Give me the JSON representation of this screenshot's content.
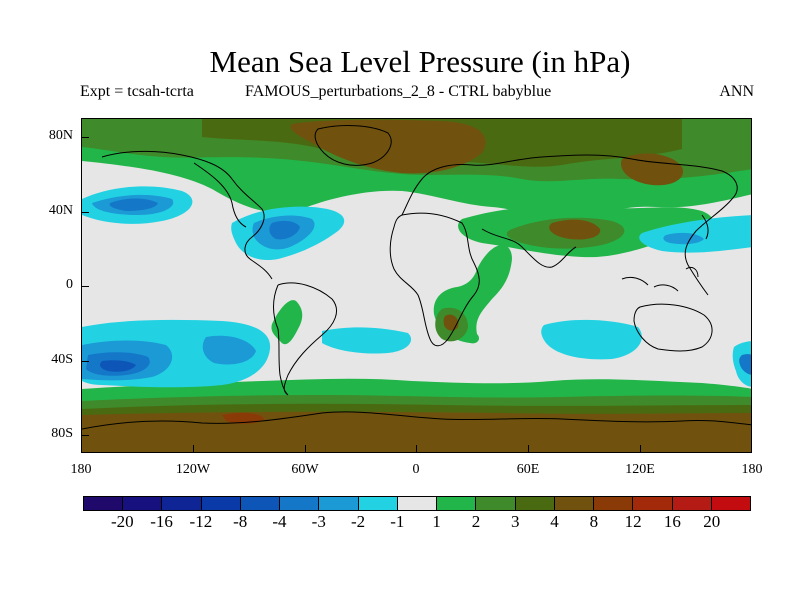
{
  "title": "Mean Sea Level Pressure (in hPa)",
  "subtitle_left": "Expt = tcsah-tcrta",
  "subtitle_center": "FAMOUS_perturbations_2_8 - CTRL babyblue",
  "subtitle_right": "ANN",
  "map": {
    "projection": "cylindrical equidistant",
    "variable": "mean sea level pressure difference",
    "units": "hPa",
    "lon_range": [
      -180,
      180
    ],
    "lat_range": [
      -90,
      90
    ],
    "y_tick_labels": [
      "80N",
      "40N",
      "0",
      "40S",
      "80S"
    ],
    "x_tick_labels": [
      "180",
      "120W",
      "60W",
      "0",
      "60E",
      "120E",
      "180"
    ]
  },
  "colorbar": {
    "labels": [
      "-20",
      "-16",
      "-12",
      "-8",
      "-4",
      "-3",
      "-2",
      "-1",
      "1",
      "2",
      "3",
      "4",
      "8",
      "12",
      "16",
      "20"
    ],
    "colors": [
      "#1f0a6b",
      "#17117f",
      "#0f2596",
      "#0a3aa8",
      "#0d56b8",
      "#1577c8",
      "#1b9ad6",
      "#22d2e3",
      "#e6e6e6",
      "#22b64a",
      "#3f8a2a",
      "#4a6a12",
      "#70520e",
      "#8a3a07",
      "#a22a0b",
      "#b31b14",
      "#c20c10"
    ]
  },
  "colors": {
    "neutral": "#e6e6e6",
    "pos_1_2": "#22b64a",
    "pos_2_3": "#3f8a2a",
    "pos_3_4": "#4a6a12",
    "pos_4_8": "#70520e",
    "pos_8_12": "#8a3a07",
    "neg_1_2": "#22d2e3",
    "neg_2_3": "#1b9ad6",
    "neg_3_4": "#1577c8",
    "neg_4_8": "#0d56b8"
  }
}
